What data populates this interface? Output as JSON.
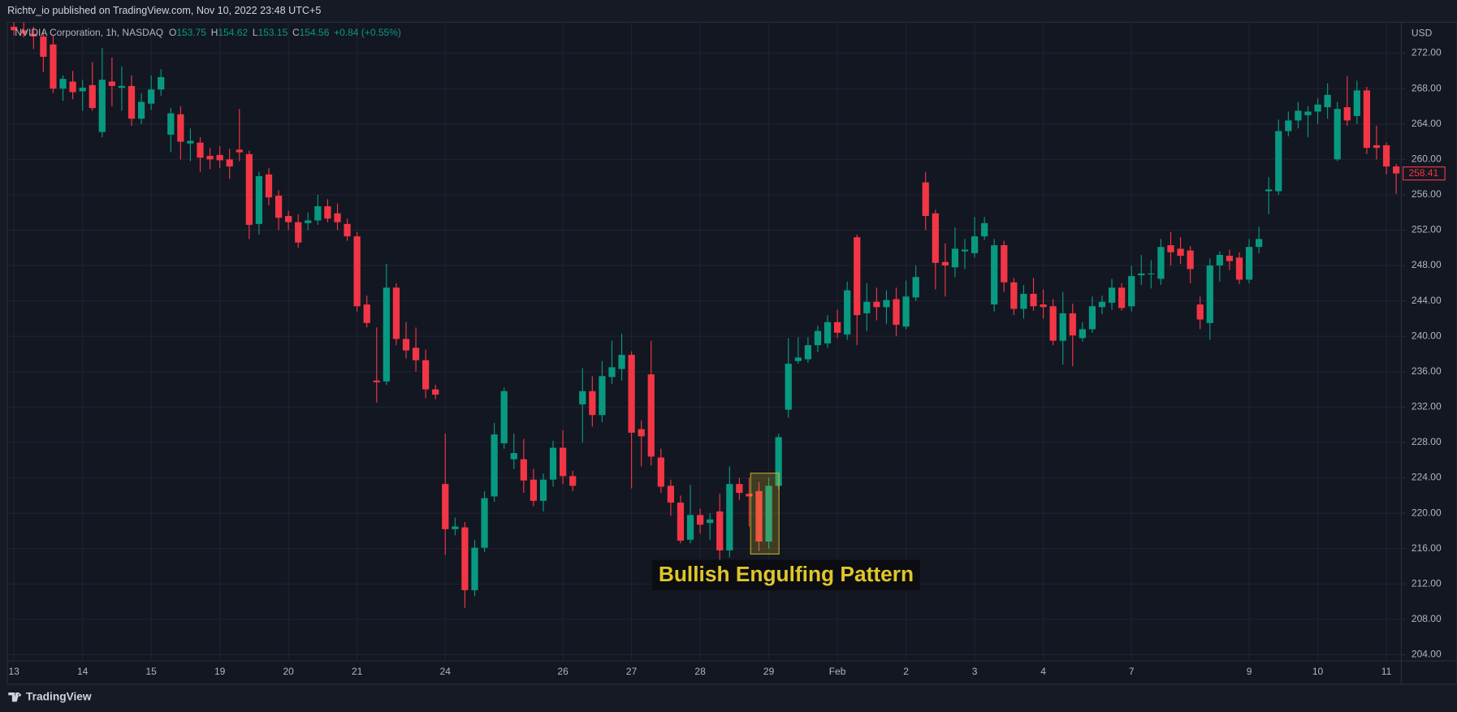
{
  "header": {
    "publisher": "Richtv_io published on TradingView.com, Nov 10, 2022 23:48 UTC+5"
  },
  "footer": {
    "brand": "TradingView"
  },
  "chart_data": {
    "type": "candlestick",
    "legend": {
      "title": "NVIDIA Corporation, 1h, NASDAQ",
      "ohlc": [
        {
          "label": "O",
          "value": 153.75
        },
        {
          "label": "H",
          "value": 154.62
        },
        {
          "label": "L",
          "value": 153.15
        },
        {
          "label": "C",
          "value": 154.56
        }
      ],
      "change": "+0.84 (+0.55%)"
    },
    "y_unit": "USD",
    "annotations": [
      {
        "text": "Bullish Engulfing Pattern"
      }
    ],
    "colors": {
      "up": "#089981",
      "down": "#f23645",
      "annotation": "#e0c62a"
    },
    "grid": true,
    "ylim": [
      203.3,
      275.5
    ],
    "yticks": [
      {
        "value": 204,
        "label": "204.00"
      },
      {
        "value": 208,
        "label": "208.00"
      },
      {
        "value": 212,
        "label": "212.00"
      },
      {
        "value": 216,
        "label": "216.00"
      },
      {
        "value": 220,
        "label": "220.00"
      },
      {
        "value": 224,
        "label": "224.00"
      },
      {
        "value": 228,
        "label": "228.00"
      },
      {
        "value": 232,
        "label": "232.00"
      },
      {
        "value": 236,
        "label": "236.00"
      },
      {
        "value": 240,
        "label": "240.00"
      },
      {
        "value": 244,
        "label": "244.00"
      },
      {
        "value": 248,
        "label": "248.00"
      },
      {
        "value": 252,
        "label": "252.00"
      },
      {
        "value": 256,
        "label": "256.00"
      },
      {
        "value": 260,
        "label": "260.00"
      },
      {
        "value": 264,
        "label": "264.00"
      },
      {
        "value": 268,
        "label": "268.00"
      },
      {
        "value": 272,
        "label": "272.00"
      }
    ],
    "categories": [
      "13",
      null,
      null,
      null,
      null,
      null,
      null,
      "14",
      null,
      null,
      null,
      null,
      null,
      null,
      "15",
      null,
      null,
      null,
      null,
      null,
      null,
      "19",
      null,
      null,
      null,
      null,
      null,
      null,
      "20",
      null,
      null,
      null,
      null,
      null,
      null,
      "21",
      null,
      null,
      null,
      null,
      null,
      null,
      null,
      null,
      "24",
      null,
      null,
      null,
      null,
      null,
      null,
      null,
      null,
      null,
      null,
      null,
      "26",
      null,
      null,
      null,
      null,
      null,
      null,
      "27",
      null,
      null,
      null,
      null,
      null,
      null,
      "28",
      null,
      null,
      null,
      null,
      null,
      null,
      "29",
      null,
      null,
      null,
      null,
      null,
      null,
      "Feb",
      null,
      null,
      null,
      null,
      null,
      null,
      "2",
      null,
      null,
      null,
      null,
      null,
      null,
      "3",
      null,
      null,
      null,
      null,
      null,
      null,
      "4",
      null,
      null,
      null,
      null,
      null,
      null,
      null,
      null,
      "7",
      null,
      null,
      null,
      null,
      null,
      null,
      null,
      null,
      null,
      null,
      null,
      "9",
      null,
      null,
      null,
      null,
      null,
      null,
      "10",
      null,
      null,
      null,
      null,
      null,
      null,
      "11",
      null
    ],
    "open": [
      275.0,
      274.6,
      274.2,
      273.9,
      273.0,
      268.0,
      268.8,
      267.7,
      268.4,
      263.1,
      268.8,
      268.1,
      268.3,
      264.6,
      266.3,
      267.9,
      262.8,
      265.1,
      261.8,
      261.9,
      260.4,
      260.5,
      260.0,
      261.1,
      260.6,
      252.7,
      258.3,
      255.9,
      253.6,
      252.9,
      252.8,
      253.1,
      254.7,
      253.9,
      252.7,
      251.3,
      243.6,
      235.0,
      234.9,
      245.5,
      239.7,
      238.7,
      237.3,
      234.0,
      223.3,
      218.2,
      218.4,
      211.3,
      216.1,
      221.9,
      227.9,
      226.1,
      226.1,
      223.8,
      221.4,
      223.8,
      227.4,
      224.2,
      232.3,
      233.8,
      231.1,
      235.4,
      236.3,
      237.9,
      229.5,
      235.7,
      226.3,
      223.1,
      221.2,
      217.0,
      219.8,
      218.9,
      220.2,
      215.8,
      223.3,
      222.2,
      222.5,
      216.8,
      223.1,
      231.7,
      237.2,
      237.4,
      239.0,
      239.2,
      241.6,
      240.2,
      251.2,
      242.6,
      243.9,
      243.3,
      244.2,
      241.1,
      244.4,
      257.4,
      253.9,
      248.4,
      247.8,
      249.6,
      249.4,
      251.3,
      243.6,
      250.3,
      246.1,
      243.1,
      244.8,
      243.6,
      243.4,
      239.5,
      242.6,
      239.8,
      240.8,
      243.3,
      243.8,
      245.5,
      243.4,
      246.9,
      247.0,
      246.5,
      250.3,
      249.9,
      249.7,
      243.6,
      241.5,
      248.0,
      249.1,
      248.9,
      246.4,
      250.1,
      256.4,
      256.4,
      263.2,
      264.4,
      265.0,
      265.4,
      265.9,
      260.0,
      265.9,
      264.9,
      267.8,
      261.6,
      261.6,
      259.2
    ],
    "high": [
      276.0,
      275.5,
      275.0,
      274.5,
      274.0,
      269.5,
      270.0,
      269.0,
      271.0,
      272.6,
      271.5,
      270.5,
      269.5,
      267.5,
      269.5,
      270.2,
      265.8,
      266.0,
      263.5,
      262.5,
      261.3,
      261.5,
      261.2,
      265.7,
      261.0,
      258.6,
      259.0,
      256.5,
      254.2,
      253.8,
      254.0,
      256.0,
      255.5,
      255.0,
      253.3,
      251.8,
      244.6,
      241.0,
      248.2,
      246.0,
      241.6,
      241.0,
      238.5,
      234.5,
      229.0,
      219.5,
      219.0,
      217.0,
      222.5,
      230.2,
      234.2,
      229.0,
      228.4,
      225.0,
      224.5,
      228.2,
      229.4,
      224.8,
      236.4,
      235.5,
      237.2,
      239.5,
      240.3,
      238.3,
      230.5,
      239.5,
      227.3,
      223.8,
      222.0,
      223.2,
      220.5,
      220.0,
      222.2,
      225.3,
      224.0,
      224.0,
      223.5,
      224.0,
      229.0,
      239.8,
      239.9,
      239.9,
      241.2,
      242.4,
      243.0,
      246.2,
      251.5,
      246.0,
      245.5,
      245.2,
      245.5,
      246.3,
      248.0,
      258.6,
      254.3,
      250.5,
      252.3,
      251.0,
      253.5,
      253.5,
      251.0,
      250.8,
      246.6,
      245.8,
      246.6,
      245.3,
      244.2,
      245.0,
      243.7,
      241.6,
      244.5,
      244.6,
      246.5,
      246.0,
      248.0,
      249.2,
      248.6,
      251.0,
      251.8,
      251.2,
      250.2,
      244.5,
      248.8,
      249.6,
      249.8,
      249.5,
      251.0,
      252.4,
      258.0,
      264.5,
      265.4,
      266.5,
      266.0,
      266.9,
      268.6,
      266.5,
      269.4,
      268.9,
      268.2,
      263.8,
      261.9,
      259.5
    ],
    "low": [
      274.0,
      273.8,
      272.5,
      269.9,
      267.5,
      266.6,
      266.8,
      265.5,
      265.5,
      262.5,
      266.0,
      265.5,
      263.8,
      264.0,
      265.6,
      267.2,
      260.8,
      260.0,
      259.8,
      258.6,
      258.9,
      259.0,
      257.8,
      259.8,
      251.0,
      251.5,
      254.8,
      252.0,
      252.0,
      250.0,
      252.0,
      252.6,
      252.9,
      252.0,
      250.8,
      242.8,
      241.0,
      232.5,
      234.5,
      239.0,
      237.5,
      236.0,
      233.0,
      232.9,
      215.3,
      217.5,
      209.3,
      210.6,
      215.6,
      221.3,
      227.3,
      225.0,
      222.3,
      220.8,
      220.2,
      223.0,
      223.3,
      222.5,
      228.0,
      229.8,
      230.3,
      234.6,
      235.0,
      222.8,
      225.3,
      225.4,
      222.3,
      219.7,
      216.6,
      216.6,
      217.7,
      217.0,
      214.2,
      215.0,
      221.5,
      218.5,
      215.7,
      216.0,
      222.7,
      230.8,
      236.9,
      237.0,
      238.2,
      238.7,
      239.8,
      239.6,
      239.0,
      240.6,
      241.8,
      241.4,
      240.0,
      240.8,
      244.0,
      252.0,
      245.3,
      244.5,
      246.7,
      247.6,
      248.9,
      250.9,
      242.8,
      245.0,
      242.4,
      242.0,
      242.9,
      242.0,
      239.0,
      236.8,
      236.6,
      239.4,
      240.4,
      242.5,
      243.0,
      242.9,
      242.8,
      245.8,
      245.4,
      245.8,
      248.0,
      248.2,
      246.0,
      240.8,
      239.6,
      246.2,
      247.5,
      245.9,
      246.0,
      249.4,
      253.8,
      256.0,
      262.6,
      263.5,
      262.5,
      264.0,
      264.6,
      259.8,
      263.8,
      264.0,
      260.6,
      260.0,
      258.3,
      256.1
    ],
    "close": [
      274.6,
      274.2,
      273.9,
      271.6,
      268.0,
      269.1,
      267.6,
      268.1,
      265.8,
      269.0,
      268.3,
      268.3,
      264.6,
      266.5,
      267.9,
      269.3,
      265.2,
      262.0,
      262.1,
      260.2,
      260.0,
      259.9,
      259.2,
      260.8,
      252.6,
      258.1,
      255.7,
      253.4,
      252.9,
      250.6,
      253.1,
      254.7,
      253.3,
      252.9,
      251.3,
      243.4,
      241.5,
      234.8,
      245.5,
      239.7,
      238.4,
      237.3,
      234.0,
      233.4,
      218.2,
      218.5,
      211.3,
      216.1,
      221.7,
      228.9,
      233.8,
      226.8,
      223.7,
      221.4,
      223.8,
      227.4,
      224.2,
      223.1,
      233.8,
      231.1,
      235.5,
      236.5,
      237.9,
      229.1,
      228.7,
      226.4,
      223.0,
      221.2,
      216.9,
      219.8,
      218.7,
      219.3,
      215.8,
      223.3,
      222.3,
      221.9,
      216.8,
      223.1,
      228.6,
      236.9,
      237.6,
      239.0,
      240.6,
      241.6,
      240.4,
      245.2,
      242.4,
      243.9,
      243.3,
      244.1,
      241.3,
      244.5,
      246.7,
      253.6,
      248.3,
      248.0,
      249.9,
      249.8,
      251.3,
      252.8,
      250.3,
      246.1,
      243.1,
      244.8,
      243.4,
      243.3,
      239.5,
      242.6,
      240.1,
      240.8,
      243.4,
      243.9,
      245.5,
      243.2,
      246.8,
      247.1,
      247.1,
      250.1,
      249.5,
      249.1,
      247.6,
      241.9,
      248.0,
      249.2,
      248.5,
      246.4,
      250.1,
      251.0,
      256.6,
      263.2,
      264.4,
      265.5,
      265.4,
      266.2,
      267.3,
      265.7,
      264.4,
      267.8,
      261.3,
      261.3,
      259.2,
      258.41
    ]
  }
}
